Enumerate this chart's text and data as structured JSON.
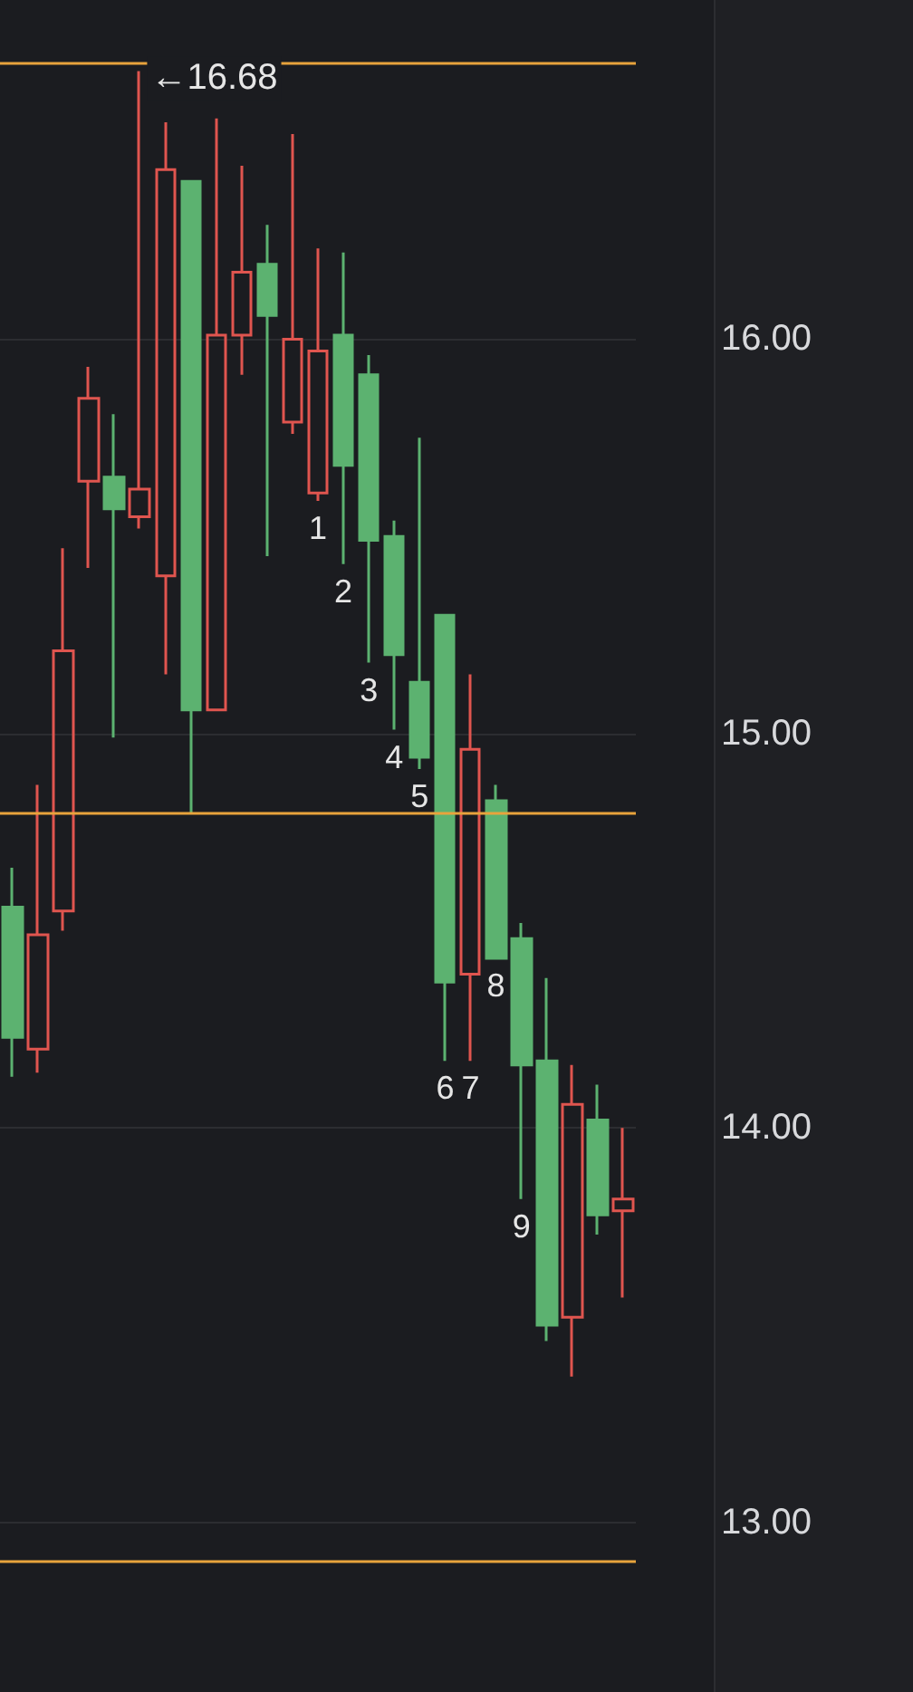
{
  "chart_data": {
    "type": "candlestick",
    "categories": [
      null,
      null,
      null,
      null,
      null,
      null,
      null,
      null,
      null,
      null,
      null,
      null,
      null,
      null,
      null,
      null,
      null,
      null,
      null,
      null,
      null,
      null,
      null,
      null,
      null
    ],
    "ohlc": [
      [
        14.56,
        14.66,
        14.13,
        14.23
      ],
      [
        14.2,
        14.87,
        14.14,
        14.49
      ],
      [
        14.55,
        15.47,
        14.5,
        15.21
      ],
      [
        15.64,
        15.93,
        15.42,
        15.85
      ],
      [
        15.65,
        15.81,
        14.99,
        15.57
      ],
      [
        15.55,
        16.68,
        15.52,
        15.62
      ],
      [
        15.4,
        16.55,
        15.15,
        16.43
      ],
      [
        16.4,
        16.4,
        14.8,
        15.06
      ],
      [
        15.06,
        16.56,
        15.06,
        16.01
      ],
      [
        16.01,
        16.44,
        15.91,
        16.17
      ],
      [
        16.19,
        16.29,
        15.45,
        16.06
      ],
      [
        15.79,
        16.52,
        15.76,
        16.0
      ],
      [
        15.61,
        16.23,
        15.59,
        15.97
      ],
      [
        16.01,
        16.22,
        15.43,
        15.68
      ],
      [
        15.91,
        15.96,
        15.18,
        15.49
      ],
      [
        15.5,
        15.54,
        15.01,
        15.2
      ],
      [
        15.13,
        15.75,
        14.91,
        14.94
      ],
      [
        15.3,
        15.3,
        14.17,
        14.37
      ],
      [
        14.39,
        15.15,
        14.17,
        14.96
      ],
      [
        14.83,
        14.87,
        14.43,
        14.43
      ],
      [
        14.48,
        14.52,
        13.82,
        14.16
      ],
      [
        14.17,
        14.38,
        13.46,
        13.5
      ],
      [
        13.52,
        14.16,
        13.37,
        14.06
      ],
      [
        14.02,
        14.11,
        13.73,
        13.78
      ],
      [
        13.79,
        14.0,
        13.57,
        13.82
      ]
    ],
    "colors": [
      "#5cb270",
      "#e0554f",
      "#e0554f",
      "#e0554f",
      "#5cb270",
      "#e0554f",
      "#e0554f",
      "#5cb270",
      "#e0554f",
      "#e0554f",
      "#5cb270",
      "#e0554f",
      "#e0554f",
      "#5cb270",
      "#5cb270",
      "#5cb270",
      "#5cb270",
      "#5cb270",
      "#e0554f",
      "#5cb270",
      "#5cb270",
      "#5cb270",
      "#e0554f",
      "#5cb270",
      "#e0554f"
    ],
    "value_labels": [
      null,
      null,
      null,
      null,
      null,
      null,
      null,
      null,
      null,
      null,
      null,
      null,
      "1",
      "2",
      "3",
      "4",
      "5",
      "6",
      "7",
      "8",
      "9",
      null,
      null,
      null,
      null
    ],
    "annotations": [
      {
        "text": "←16.68",
        "y": 16.68
      }
    ],
    "ylim": [
      12.57,
      16.86
    ],
    "yticks": [
      {
        "value": 13,
        "label": "13.00"
      },
      {
        "value": 14,
        "label": "14.00"
      },
      {
        "value": 15,
        "label": "15.00"
      },
      {
        "value": 16,
        "label": "16.00"
      }
    ],
    "grid": "y",
    "ref_lines": [
      {
        "axis": "y",
        "value": 16.7,
        "color": "#e8a33c"
      },
      {
        "axis": "y",
        "value": 14.8,
        "color": "#e8a33c"
      },
      {
        "axis": "y",
        "value": 12.9,
        "color": "#e8a33c"
      }
    ]
  }
}
